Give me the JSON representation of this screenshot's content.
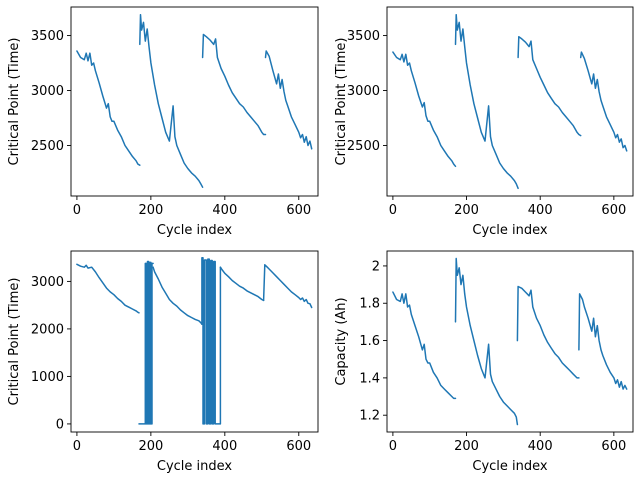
{
  "series_color": "#1f77b4",
  "chart_data": [
    {
      "type": "line",
      "xlabel": "Cycle index",
      "ylabel": "Critical Point (Time)",
      "xlim": [
        -16,
        652
      ],
      "ylim": [
        2040,
        3760
      ],
      "xticks": [
        0,
        200,
        400,
        600
      ],
      "yticks": [
        2500,
        3000,
        3500
      ],
      "grid": false,
      "segments": [
        {
          "x": [
            0,
            10,
            20,
            25,
            30,
            35,
            40,
            45,
            50,
            60,
            70,
            80,
            85,
            90,
            95,
            100,
            110,
            120,
            130,
            140,
            150,
            160,
            165,
            170
          ],
          "y": [
            3360,
            3300,
            3280,
            3340,
            3270,
            3340,
            3230,
            3250,
            3180,
            3070,
            2950,
            2840,
            2880,
            2760,
            2720,
            2720,
            2640,
            2580,
            2500,
            2450,
            2400,
            2360,
            2330,
            2320
          ]
        },
        {
          "x": [
            170,
            172,
            175,
            180,
            185,
            190,
            195,
            200,
            210,
            220,
            230,
            240,
            250,
            260,
            265,
            270,
            280,
            290,
            300,
            310,
            320,
            330,
            335,
            340
          ],
          "y": [
            3420,
            3690,
            3550,
            3620,
            3450,
            3560,
            3400,
            3250,
            3050,
            2880,
            2750,
            2620,
            2540,
            2860,
            2580,
            2500,
            2420,
            2340,
            2290,
            2250,
            2220,
            2180,
            2150,
            2120
          ]
        },
        {
          "x": [
            340,
            342,
            350,
            360,
            370,
            375,
            380,
            390,
            400,
            410,
            420,
            430,
            440,
            450,
            460,
            470,
            480,
            490,
            500,
            505,
            510
          ],
          "y": [
            3300,
            3510,
            3490,
            3460,
            3420,
            3470,
            3300,
            3200,
            3130,
            3050,
            2980,
            2930,
            2880,
            2850,
            2800,
            2760,
            2720,
            2680,
            2620,
            2600,
            2600
          ]
        },
        {
          "x": [
            510,
            512,
            520,
            530,
            540,
            545,
            550,
            555,
            560,
            565,
            570,
            580,
            590,
            600,
            605,
            610,
            615,
            620,
            625,
            630,
            635
          ],
          "y": [
            3300,
            3360,
            3310,
            3180,
            3060,
            3150,
            3020,
            3100,
            2990,
            2910,
            2860,
            2760,
            2690,
            2620,
            2570,
            2600,
            2530,
            2580,
            2500,
            2540,
            2470
          ]
        }
      ]
    },
    {
      "type": "line",
      "xlabel": "Cycle index",
      "ylabel": "Critical Point (Time)",
      "xlim": [
        -16,
        652
      ],
      "ylim": [
        2040,
        3760
      ],
      "xticks": [
        0,
        200,
        400,
        600
      ],
      "yticks": [
        2500,
        3000,
        3500
      ],
      "grid": false,
      "segments": [
        {
          "x": [
            0,
            10,
            20,
            25,
            30,
            35,
            40,
            45,
            50,
            60,
            70,
            80,
            85,
            90,
            95,
            100,
            110,
            120,
            130,
            140,
            150,
            160,
            165,
            170
          ],
          "y": [
            3350,
            3300,
            3280,
            3330,
            3260,
            3330,
            3230,
            3250,
            3180,
            3070,
            2950,
            2850,
            2890,
            2770,
            2720,
            2720,
            2640,
            2580,
            2500,
            2450,
            2400,
            2360,
            2330,
            2310
          ]
        },
        {
          "x": [
            170,
            172,
            175,
            180,
            185,
            190,
            195,
            200,
            210,
            220,
            230,
            240,
            250,
            260,
            265,
            270,
            280,
            290,
            300,
            310,
            320,
            330,
            335,
            340
          ],
          "y": [
            3420,
            3690,
            3550,
            3620,
            3450,
            3560,
            3400,
            3250,
            3050,
            2880,
            2750,
            2620,
            2540,
            2860,
            2580,
            2500,
            2420,
            2340,
            2290,
            2250,
            2220,
            2180,
            2150,
            2110
          ]
        },
        {
          "x": [
            340,
            342,
            350,
            360,
            370,
            375,
            380,
            390,
            400,
            410,
            420,
            430,
            440,
            450,
            460,
            470,
            480,
            490,
            500,
            505,
            510
          ],
          "y": [
            3300,
            3490,
            3470,
            3440,
            3400,
            3450,
            3280,
            3200,
            3120,
            3050,
            2980,
            2930,
            2880,
            2850,
            2800,
            2760,
            2720,
            2680,
            2620,
            2600,
            2590
          ]
        },
        {
          "x": [
            510,
            512,
            520,
            530,
            540,
            545,
            550,
            555,
            560,
            565,
            570,
            580,
            590,
            600,
            605,
            610,
            615,
            620,
            625,
            630,
            635
          ],
          "y": [
            3300,
            3350,
            3290,
            3180,
            3060,
            3150,
            3020,
            3100,
            2990,
            2910,
            2860,
            2760,
            2690,
            2620,
            2570,
            2600,
            2530,
            2560,
            2480,
            2500,
            2450
          ]
        }
      ]
    },
    {
      "type": "line",
      "xlabel": "Cycle index",
      "ylabel": "Critical Point (Time)",
      "xlim": [
        -16,
        652
      ],
      "ylim": [
        -170,
        3640
      ],
      "xticks": [
        0,
        200,
        400,
        600
      ],
      "yticks": [
        0,
        1000,
        2000,
        3000
      ],
      "grid": false,
      "segments": [
        {
          "x": [
            0,
            10,
            20,
            25,
            30,
            40,
            50,
            60,
            70,
            80,
            90,
            100,
            110,
            120,
            130,
            140,
            150,
            160,
            165,
            168
          ],
          "y": [
            3360,
            3320,
            3300,
            3340,
            3280,
            3300,
            3200,
            3080,
            2970,
            2860,
            2780,
            2720,
            2640,
            2580,
            2500,
            2460,
            2420,
            2380,
            2350,
            2340
          ]
        },
        {
          "x": [
            168,
            170,
            180,
            185,
            185,
            188,
            188,
            191,
            191,
            194,
            194,
            197,
            197,
            200,
            200,
            203,
            203,
            206
          ],
          "y": [
            0,
            0,
            0,
            0,
            3380,
            3380,
            0,
            0,
            3420,
            3420,
            0,
            0,
            3400,
            3400,
            0,
            0,
            3380,
            3380
          ]
        },
        {
          "x": [
            206,
            210,
            220,
            230,
            240,
            250,
            260,
            270,
            280,
            290,
            300,
            310,
            320,
            330,
            335,
            338
          ],
          "y": [
            3300,
            3200,
            3050,
            2880,
            2750,
            2620,
            2540,
            2480,
            2400,
            2340,
            2280,
            2240,
            2200,
            2170,
            2130,
            2100
          ]
        },
        {
          "x": [
            338,
            338,
            341,
            341,
            345,
            345,
            350,
            350,
            354,
            354,
            358,
            358,
            362,
            362,
            366,
            366,
            370,
            370,
            374,
            374,
            380,
            380,
            388,
            388
          ],
          "y": [
            2100,
            3500,
            3500,
            0,
            0,
            3450,
            3450,
            0,
            0,
            3470,
            3470,
            0,
            0,
            3440,
            3440,
            0,
            0,
            3420,
            3420,
            0,
            0,
            0,
            0,
            3300
          ]
        },
        {
          "x": [
            388,
            392,
            400,
            410,
            420,
            430,
            440,
            450,
            460,
            470,
            480,
            490,
            500,
            505
          ],
          "y": [
            3300,
            3250,
            3170,
            3100,
            3020,
            2960,
            2900,
            2860,
            2800,
            2760,
            2720,
            2680,
            2620,
            2600
          ]
        },
        {
          "x": [
            505,
            508,
            515,
            520,
            530,
            540,
            550,
            560,
            570,
            580,
            590,
            600,
            605,
            610,
            615,
            620,
            625,
            630,
            635
          ],
          "y": [
            2600,
            3350,
            3300,
            3260,
            3180,
            3100,
            3020,
            2940,
            2860,
            2780,
            2720,
            2660,
            2620,
            2650,
            2580,
            2620,
            2540,
            2530,
            2450
          ]
        }
      ]
    },
    {
      "type": "line",
      "xlabel": "Cycle index",
      "ylabel": "Capacity (Ah)",
      "xlim": [
        -16,
        652
      ],
      "ylim": [
        1.11,
        2.08
      ],
      "xticks": [
        0,
        200,
        400,
        600
      ],
      "yticks": [
        1.2,
        1.4,
        1.6,
        1.8,
        2.0
      ],
      "grid": false,
      "segments": [
        {
          "x": [
            0,
            10,
            20,
            25,
            30,
            35,
            40,
            45,
            50,
            60,
            70,
            80,
            85,
            90,
            95,
            100,
            110,
            120,
            130,
            140,
            150,
            160,
            165,
            170
          ],
          "y": [
            1.86,
            1.82,
            1.81,
            1.85,
            1.8,
            1.85,
            1.78,
            1.79,
            1.74,
            1.68,
            1.62,
            1.55,
            1.58,
            1.5,
            1.48,
            1.48,
            1.43,
            1.4,
            1.36,
            1.34,
            1.32,
            1.3,
            1.29,
            1.29
          ]
        },
        {
          "x": [
            170,
            172,
            175,
            180,
            185,
            190,
            195,
            200,
            210,
            220,
            230,
            240,
            250,
            260,
            265,
            270,
            280,
            290,
            300,
            310,
            320,
            330,
            335,
            338
          ],
          "y": [
            1.7,
            2.04,
            1.95,
            1.99,
            1.9,
            1.95,
            1.85,
            1.78,
            1.68,
            1.6,
            1.52,
            1.45,
            1.4,
            1.58,
            1.42,
            1.38,
            1.34,
            1.3,
            1.27,
            1.25,
            1.23,
            1.21,
            1.19,
            1.15
          ]
        },
        {
          "x": [
            338,
            340,
            350,
            360,
            370,
            375,
            380,
            390,
            400,
            410,
            420,
            430,
            440,
            450,
            460,
            470,
            480,
            490,
            500,
            505
          ],
          "y": [
            1.6,
            1.89,
            1.88,
            1.86,
            1.84,
            1.87,
            1.78,
            1.72,
            1.68,
            1.63,
            1.59,
            1.56,
            1.53,
            1.51,
            1.48,
            1.46,
            1.44,
            1.42,
            1.4,
            1.4
          ]
        },
        {
          "x": [
            505,
            507,
            515,
            520,
            530,
            540,
            545,
            550,
            555,
            560,
            565,
            570,
            580,
            590,
            600,
            605,
            610,
            615,
            620,
            625,
            630,
            635
          ],
          "y": [
            1.55,
            1.85,
            1.82,
            1.78,
            1.72,
            1.65,
            1.72,
            1.62,
            1.68,
            1.6,
            1.55,
            1.52,
            1.47,
            1.43,
            1.4,
            1.37,
            1.39,
            1.35,
            1.38,
            1.34,
            1.36,
            1.34
          ]
        }
      ]
    }
  ]
}
